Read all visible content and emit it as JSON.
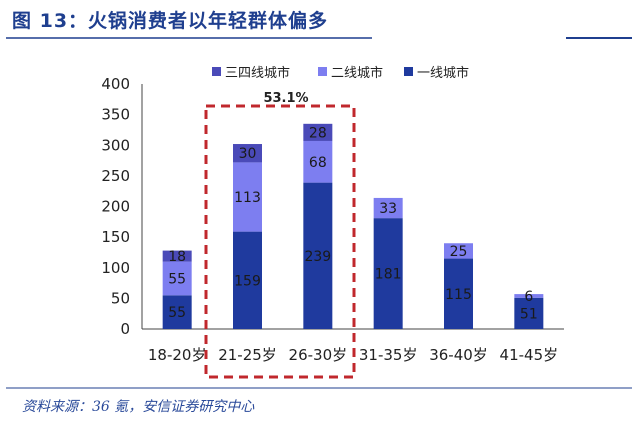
{
  "figure": {
    "title": "图 13：火锅消费者以年轻群体偏多",
    "source": "资料来源：36 氪，安信证券研究中心"
  },
  "chart_data": {
    "type": "bar",
    "stacked": true,
    "categories": [
      "18-20岁",
      "21-25岁",
      "26-30岁",
      "31-35岁",
      "36-40岁",
      "41-45岁"
    ],
    "series": [
      {
        "name": "一线城市",
        "values": [
          55,
          159,
          239,
          181,
          115,
          51
        ],
        "color": "#1f3a9e"
      },
      {
        "name": "二线城市",
        "values": [
          55,
          113,
          68,
          33,
          25,
          6
        ],
        "color": "#7d7ef0"
      },
      {
        "name": "三四线城市",
        "values": [
          18,
          30,
          28,
          0,
          0,
          0
        ],
        "color": "#4a4ab8"
      }
    ],
    "legend_order": [
      "三四线城市",
      "二线城市",
      "一线城市"
    ],
    "data_labels": [
      [
        "55",
        "159",
        "239",
        "181",
        "115",
        "51"
      ],
      [
        "55",
        "113",
        "68",
        "33",
        "25",
        "6"
      ],
      [
        "18",
        "30",
        "28",
        "",
        "",
        ""
      ]
    ],
    "yticks": [
      0,
      50,
      100,
      150,
      200,
      250,
      300,
      350,
      400
    ],
    "ylim": [
      0,
      400
    ],
    "legend_position": "top",
    "grid": false,
    "annotation": {
      "text": "53.1%",
      "spans": [
        "21-25岁",
        "26-30岁"
      ],
      "color": "#c0282d"
    }
  }
}
